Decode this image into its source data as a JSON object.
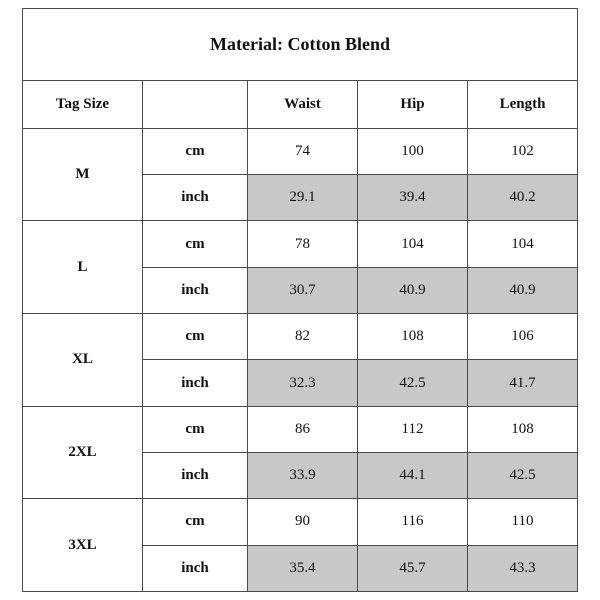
{
  "title": "Material: Cotton Blend",
  "headers": {
    "tag_size": "Tag Size",
    "unit": "",
    "waist": "Waist",
    "hip": "Hip",
    "length": "Length"
  },
  "sizes": [
    {
      "size": "M",
      "cm": {
        "unit": "cm",
        "waist": "74",
        "hip": "100",
        "length": "102"
      },
      "inch": {
        "unit": "inch",
        "waist": "29.1",
        "hip": "39.4",
        "length": "40.2"
      }
    },
    {
      "size": "L",
      "cm": {
        "unit": "cm",
        "waist": "78",
        "hip": "104",
        "length": "104"
      },
      "inch": {
        "unit": "inch",
        "waist": "30.7",
        "hip": "40.9",
        "length": "40.9"
      }
    },
    {
      "size": "XL",
      "cm": {
        "unit": "cm",
        "waist": "82",
        "hip": "108",
        "length": "106"
      },
      "inch": {
        "unit": "inch",
        "waist": "32.3",
        "hip": "42.5",
        "length": "41.7"
      }
    },
    {
      "size": "2XL",
      "cm": {
        "unit": "cm",
        "waist": "86",
        "hip": "112",
        "length": "108"
      },
      "inch": {
        "unit": "inch",
        "waist": "33.9",
        "hip": "44.1",
        "length": "42.5"
      }
    },
    {
      "size": "3XL",
      "cm": {
        "unit": "cm",
        "waist": "90",
        "hip": "116",
        "length": "110"
      },
      "inch": {
        "unit": "inch",
        "waist": "35.4",
        "hip": "45.7",
        "length": "43.3"
      }
    }
  ],
  "colors": {
    "border": "#4a4a4a",
    "shaded": "#c8c8c8",
    "text": "#111111"
  }
}
